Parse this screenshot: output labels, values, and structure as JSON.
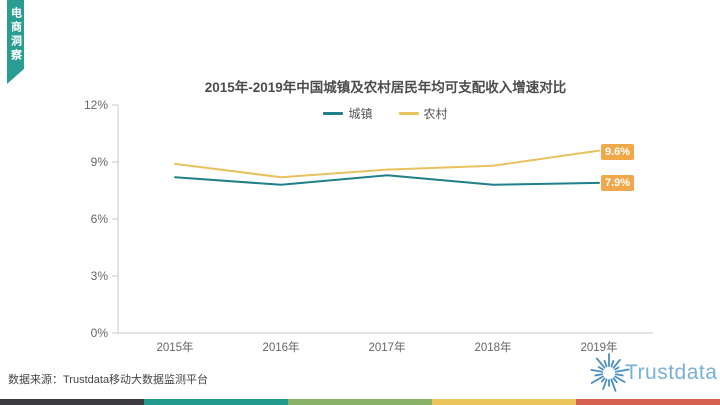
{
  "ribbon": {
    "label": "电商洞察",
    "color": "#2b9c92"
  },
  "chart_data": {
    "type": "line",
    "title": "2015年-2019年中国城镇及农村居民年均可支配收入增速对比",
    "categories": [
      "2015年",
      "2016年",
      "2017年",
      "2018年",
      "2019年"
    ],
    "series": [
      {
        "name": "城镇",
        "color": "#1f8089",
        "values": [
          8.2,
          7.8,
          8.3,
          7.8,
          7.9
        ],
        "end_label": "7.9%"
      },
      {
        "name": "农村",
        "color": "#e9c25e",
        "values": [
          8.9,
          8.2,
          8.6,
          8.8,
          9.6
        ],
        "end_label": "9.6%"
      }
    ],
    "ylim": [
      0,
      12
    ],
    "ytick_values": [
      0,
      3,
      6,
      9,
      12
    ],
    "yticks": [
      "0%",
      "3%",
      "6%",
      "9%",
      "12%"
    ],
    "legend_position": "top-center",
    "grid": false,
    "axis_color": "#c9c9c9",
    "tick_label_color": "#666666",
    "end_label_bg": "#f0a94a"
  },
  "source": {
    "text": "数据来源：Trustdata移动大数据监测平台"
  },
  "logo": {
    "text": "Trustdata",
    "text_color": "#79b1d6",
    "icon_color": "#4a8ec5"
  },
  "footer_bar": {
    "colors": [
      "#3b3b3d",
      "#21998c",
      "#8ab169",
      "#ecc65a",
      "#d6604f"
    ]
  }
}
